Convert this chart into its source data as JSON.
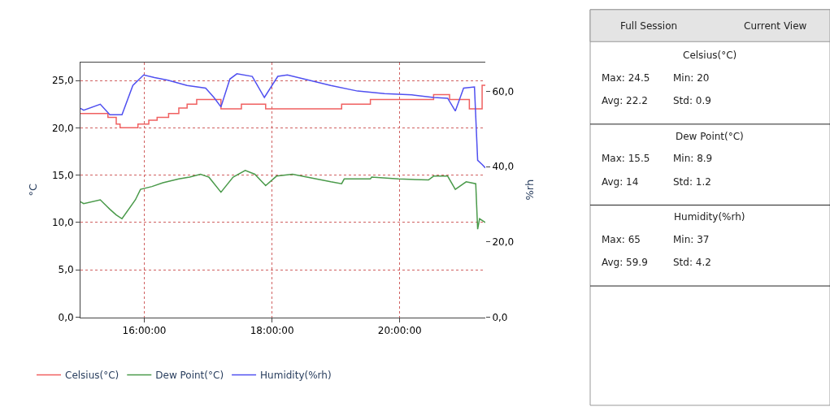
{
  "chart_data": [
    {
      "type": "line",
      "ylabel": "°C",
      "y2label": "%rh",
      "xlim": [
        15.0,
        21.34
      ],
      "xticks": [
        {
          "value": 16,
          "label": "16:00:00"
        },
        {
          "value": 18,
          "label": "18:00:00"
        },
        {
          "value": 20,
          "label": "20:00:00"
        }
      ],
      "ylim": [
        0,
        26.9
      ],
      "yticks": [
        {
          "value": 0,
          "label": "0,0"
        },
        {
          "value": 5,
          "label": "5,0"
        },
        {
          "value": 10,
          "label": "10,0"
        },
        {
          "value": 15,
          "label": "15,0"
        },
        {
          "value": 20,
          "label": "20,0"
        },
        {
          "value": 25,
          "label": "25,0"
        }
      ],
      "y2lim": [
        0,
        67.7
      ],
      "y2ticks": [
        {
          "value": 0,
          "label": "0,0"
        },
        {
          "value": 20,
          "label": "20,0"
        },
        {
          "value": 40,
          "label": "40,0"
        },
        {
          "value": 60,
          "label": "60,0"
        }
      ],
      "grid": true,
      "legend": "bottom",
      "series": [
        {
          "name": "Celsius(°C)",
          "type": "step",
          "color": "#f06060",
          "x": [
            15.0,
            15.43,
            15.56,
            15.62,
            15.9,
            16.07,
            16.2,
            16.38,
            16.54,
            16.67,
            16.82,
            17.2,
            17.52,
            17.9,
            19.09,
            19.54,
            20.53,
            20.78,
            21.09,
            21.29,
            21.34
          ],
          "values": [
            21.5,
            21.1,
            20.4,
            20.0,
            20.4,
            20.8,
            21.1,
            21.5,
            22.1,
            22.5,
            23.0,
            22.0,
            22.5,
            22.0,
            22.5,
            23.0,
            23.5,
            23.0,
            22.0,
            24.5,
            24.5
          ]
        },
        {
          "name": "Dew Point(°C)",
          "color": "#4a9a4a",
          "x": [
            15.0,
            15.05,
            15.31,
            15.46,
            15.56,
            15.65,
            15.86,
            15.94,
            16.12,
            16.29,
            16.54,
            16.71,
            16.88,
            17.01,
            17.2,
            17.39,
            17.58,
            17.73,
            17.9,
            18.07,
            18.32,
            18.92,
            19.09,
            19.13,
            19.54,
            19.56,
            19.98,
            20.45,
            20.53,
            20.75,
            20.87,
            21.04,
            21.19,
            21.22,
            21.25,
            21.34
          ],
          "values": [
            12.2,
            12.0,
            12.4,
            11.4,
            10.8,
            10.4,
            12.4,
            13.5,
            13.8,
            14.2,
            14.6,
            14.8,
            15.1,
            14.8,
            13.2,
            14.8,
            15.5,
            15.1,
            13.9,
            14.9,
            15.1,
            14.3,
            14.1,
            14.6,
            14.6,
            14.8,
            14.6,
            14.5,
            14.9,
            14.9,
            13.5,
            14.3,
            14.1,
            9.3,
            10.4,
            10.0
          ]
        },
        {
          "name": "Humidity(%rh)",
          "axis": "y2",
          "color": "#5050f0",
          "x": [
            15.0,
            15.05,
            15.31,
            15.46,
            15.65,
            15.82,
            15.99,
            16.16,
            16.37,
            16.67,
            16.96,
            17.09,
            17.2,
            17.34,
            17.45,
            17.69,
            17.88,
            18.09,
            18.24,
            18.58,
            18.92,
            19.34,
            19.76,
            20.19,
            20.53,
            20.75,
            20.87,
            21.0,
            21.17,
            21.22,
            21.29,
            21.34
          ],
          "values": [
            55.5,
            55.0,
            56.6,
            53.8,
            53.8,
            61.6,
            64.4,
            63.7,
            63.0,
            61.6,
            60.9,
            58.4,
            55.9,
            63.3,
            64.7,
            64.0,
            58.4,
            64.0,
            64.4,
            63.0,
            61.6,
            60.1,
            59.4,
            59.1,
            58.4,
            58.2,
            54.8,
            60.9,
            61.2,
            41.7,
            40.6,
            39.7
          ]
        }
      ]
    },
    {
      "type": "other",
      "annotations": [
        "Full Session",
        "Current View",
        "Celsius(°C)",
        "Max: 24.5",
        "Min: 20",
        "Avg: 22.2",
        "Std: 0.9",
        "Dew Point(°C)",
        "Max: 15.5",
        "Min: 8.9",
        "Avg: 14",
        "Std: 1.2",
        "Humidity(%rh)",
        "Max: 65",
        "Min: 37",
        "Avg: 59.9",
        "Std: 4.2"
      ]
    }
  ]
}
